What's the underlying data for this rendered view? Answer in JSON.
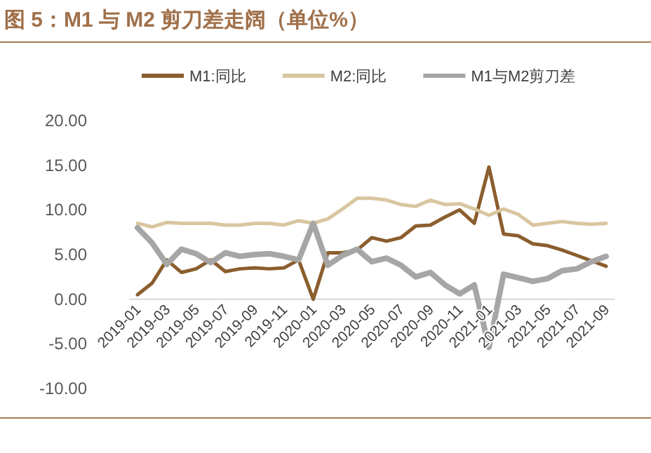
{
  "chart_data": {
    "type": "line",
    "title": "图 5：M1 与 M2 剪刀差走阔（单位%）",
    "categories": [
      "2019-01",
      null,
      "2019-03",
      null,
      "2019-05",
      null,
      "2019-07",
      null,
      "2019-09",
      null,
      "2019-11",
      null,
      "2020-01",
      null,
      "2020-03",
      null,
      "2020-05",
      null,
      "2020-07",
      null,
      "2020-09",
      null,
      "2020-11",
      null,
      "2021-01",
      null,
      "2021-03",
      null,
      "2021-05",
      null,
      "2021-07",
      null,
      "2021-09"
    ],
    "series": [
      {
        "name": "M1:同比",
        "color": "#8b5e2e",
        "values": [
          0.5,
          1.8,
          4.4,
          3.0,
          3.4,
          4.4,
          3.1,
          3.4,
          3.5,
          3.4,
          3.5,
          4.4,
          0.0,
          5.2,
          5.2,
          5.5,
          6.9,
          6.5,
          6.9,
          8.2,
          8.3,
          9.2,
          10.0,
          8.5,
          14.8,
          7.3,
          7.1,
          6.2,
          6.0,
          5.5,
          4.9,
          4.3,
          3.7
        ]
      },
      {
        "name": "M2:同比",
        "color": "#d9c6a0",
        "values": [
          8.5,
          8.1,
          8.6,
          8.5,
          8.5,
          8.5,
          8.3,
          8.3,
          8.5,
          8.5,
          8.3,
          8.8,
          8.5,
          9.0,
          10.1,
          11.3,
          11.3,
          11.1,
          10.6,
          10.4,
          11.1,
          10.6,
          10.7,
          10.1,
          9.4,
          10.1,
          9.5,
          8.3,
          8.5,
          8.7,
          8.5,
          8.4,
          8.5
        ]
      },
      {
        "name": "M1与M2剪刀差",
        "color": "#a6a6a6",
        "values": [
          8.0,
          6.3,
          3.9,
          5.6,
          5.1,
          4.1,
          5.2,
          4.8,
          5.0,
          5.1,
          4.8,
          4.4,
          8.5,
          3.8,
          4.9,
          5.6,
          4.2,
          4.6,
          3.8,
          2.5,
          3.0,
          1.6,
          0.6,
          1.6,
          -5.4,
          2.8,
          2.4,
          2.0,
          2.3,
          3.2,
          3.4,
          4.2,
          4.8
        ]
      }
    ],
    "ylim": [
      -10,
      20
    ],
    "yticks": [
      {
        "value": -10,
        "label": "-10.00"
      },
      {
        "value": -5,
        "label": "-5.00"
      },
      {
        "value": 0,
        "label": "0.00"
      },
      {
        "value": 5,
        "label": "5.00"
      },
      {
        "value": 10,
        "label": "10.00"
      },
      {
        "value": 15,
        "label": "15.00"
      },
      {
        "value": 20,
        "label": "20.00"
      }
    ],
    "legend": "top",
    "marker": "none",
    "line_style": "solid"
  }
}
